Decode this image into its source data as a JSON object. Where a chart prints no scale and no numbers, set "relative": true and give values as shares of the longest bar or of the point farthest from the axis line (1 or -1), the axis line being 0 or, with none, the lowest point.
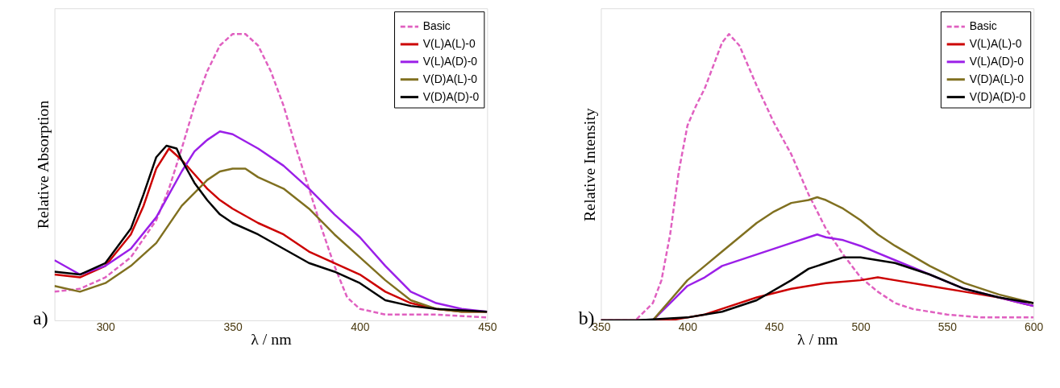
{
  "chart_data": [
    {
      "type": "line",
      "relative": true,
      "xlabel": "λ / nm",
      "ylabel": "Relative Absorption",
      "xlim": [
        280,
        450
      ],
      "xticks": [
        300,
        350,
        400,
        450
      ],
      "legend": "top right",
      "grid": false,
      "marker": "none",
      "annotations": [
        "a)"
      ],
      "series": [
        {
          "name": "Basic",
          "color": "#e060c0",
          "line_style": "dashed",
          "x": [
            280,
            290,
            300,
            310,
            320,
            325,
            330,
            335,
            340,
            345,
            350,
            355,
            360,
            365,
            370,
            375,
            380,
            385,
            390,
            395,
            400,
            410,
            420,
            430,
            450
          ],
          "values": [
            0.1,
            0.11,
            0.15,
            0.22,
            0.35,
            0.46,
            0.6,
            0.75,
            0.87,
            0.96,
            1.0,
            1.0,
            0.96,
            0.87,
            0.75,
            0.6,
            0.46,
            0.32,
            0.19,
            0.08,
            0.04,
            0.02,
            0.02,
            0.02,
            0.01
          ]
        },
        {
          "name": "V(L)A(L)-0",
          "color": "#cc0000",
          "line_style": "solid",
          "x": [
            280,
            290,
            300,
            310,
            315,
            320,
            325,
            330,
            335,
            340,
            345,
            350,
            360,
            370,
            380,
            390,
            400,
            410,
            420,
            430,
            440,
            450
          ],
          "values": [
            0.16,
            0.15,
            0.19,
            0.3,
            0.4,
            0.53,
            0.6,
            0.56,
            0.51,
            0.46,
            0.42,
            0.39,
            0.34,
            0.3,
            0.24,
            0.2,
            0.16,
            0.1,
            0.06,
            0.04,
            0.03,
            0.03
          ]
        },
        {
          "name": "V(L)A(D)-0",
          "color": "#9b1fe8",
          "line_style": "solid",
          "x": [
            280,
            290,
            300,
            310,
            320,
            330,
            335,
            340,
            345,
            350,
            360,
            370,
            380,
            390,
            400,
            410,
            420,
            430,
            440,
            450
          ],
          "values": [
            0.21,
            0.16,
            0.19,
            0.25,
            0.36,
            0.52,
            0.59,
            0.63,
            0.66,
            0.65,
            0.6,
            0.54,
            0.46,
            0.37,
            0.29,
            0.19,
            0.1,
            0.06,
            0.04,
            0.03
          ]
        },
        {
          "name": "V(D)A(L)-0",
          "color": "#807020",
          "line_style": "solid",
          "x": [
            280,
            290,
            300,
            310,
            320,
            330,
            340,
            345,
            350,
            355,
            360,
            370,
            380,
            390,
            400,
            410,
            420,
            430,
            440,
            450
          ],
          "values": [
            0.12,
            0.1,
            0.13,
            0.19,
            0.27,
            0.4,
            0.49,
            0.52,
            0.53,
            0.53,
            0.5,
            0.46,
            0.39,
            0.3,
            0.22,
            0.14,
            0.07,
            0.04,
            0.03,
            0.03
          ]
        },
        {
          "name": "V(D)A(D)-0",
          "color": "#000000",
          "line_style": "solid",
          "x": [
            280,
            290,
            300,
            310,
            315,
            320,
            324,
            328,
            330,
            335,
            340,
            345,
            350,
            360,
            370,
            380,
            390,
            400,
            410,
            420,
            430,
            450
          ],
          "values": [
            0.17,
            0.16,
            0.2,
            0.32,
            0.44,
            0.57,
            0.61,
            0.6,
            0.56,
            0.48,
            0.42,
            0.37,
            0.34,
            0.3,
            0.25,
            0.2,
            0.17,
            0.13,
            0.07,
            0.05,
            0.04,
            0.03
          ]
        }
      ]
    },
    {
      "type": "line",
      "relative": true,
      "xlabel": "λ / nm",
      "ylabel": "Relative Intensity",
      "xlim": [
        350,
        600
      ],
      "xticks": [
        350,
        400,
        450,
        500,
        550,
        600
      ],
      "legend": "top right",
      "grid": false,
      "marker": "none",
      "annotations": [
        "b)"
      ],
      "series": [
        {
          "name": "Basic",
          "color": "#e060c0",
          "line_style": "dashed",
          "x": [
            350,
            370,
            380,
            385,
            390,
            395,
            400,
            405,
            410,
            415,
            420,
            424,
            430,
            440,
            450,
            460,
            470,
            480,
            490,
            500,
            510,
            520,
            530,
            550,
            570,
            600
          ],
          "values": [
            0,
            0.0,
            0.06,
            0.14,
            0.3,
            0.52,
            0.68,
            0.75,
            0.81,
            0.89,
            0.97,
            1.0,
            0.96,
            0.82,
            0.69,
            0.58,
            0.44,
            0.32,
            0.23,
            0.15,
            0.1,
            0.06,
            0.04,
            0.02,
            0.01,
            0.01
          ]
        },
        {
          "name": "V(L)A(L)-0",
          "color": "#cc0000",
          "line_style": "solid",
          "x": [
            350,
            390,
            400,
            410,
            420,
            440,
            460,
            480,
            500,
            510,
            520,
            540,
            560,
            580,
            600
          ],
          "values": [
            0,
            0.0,
            0.01,
            0.02,
            0.04,
            0.08,
            0.11,
            0.13,
            0.14,
            0.15,
            0.14,
            0.12,
            0.1,
            0.08,
            0.05
          ]
        },
        {
          "name": "V(L)A(D)-0",
          "color": "#9b1fe8",
          "line_style": "solid",
          "x": [
            350,
            380,
            390,
            400,
            410,
            420,
            440,
            460,
            470,
            475,
            480,
            490,
            500,
            520,
            540,
            560,
            580,
            600
          ],
          "values": [
            0,
            0.0,
            0.06,
            0.12,
            0.15,
            0.19,
            0.23,
            0.27,
            0.29,
            0.3,
            0.29,
            0.28,
            0.26,
            0.21,
            0.16,
            0.11,
            0.08,
            0.05
          ]
        },
        {
          "name": "V(D)A(L)-0",
          "color": "#807020",
          "line_style": "solid",
          "x": [
            350,
            380,
            390,
            400,
            410,
            420,
            430,
            440,
            450,
            460,
            470,
            475,
            480,
            490,
            500,
            510,
            520,
            540,
            560,
            580,
            600
          ],
          "values": [
            0,
            0.0,
            0.07,
            0.14,
            0.19,
            0.24,
            0.29,
            0.34,
            0.38,
            0.41,
            0.42,
            0.43,
            0.42,
            0.39,
            0.35,
            0.3,
            0.26,
            0.19,
            0.13,
            0.09,
            0.06
          ]
        },
        {
          "name": "V(D)A(D)-0",
          "color": "#000000",
          "line_style": "solid",
          "x": [
            350,
            370,
            400,
            420,
            440,
            460,
            470,
            480,
            490,
            500,
            510,
            520,
            540,
            560,
            580,
            600
          ],
          "values": [
            0,
            0.0,
            0.01,
            0.03,
            0.07,
            0.14,
            0.18,
            0.2,
            0.22,
            0.22,
            0.21,
            0.2,
            0.16,
            0.11,
            0.08,
            0.06
          ]
        }
      ]
    }
  ]
}
